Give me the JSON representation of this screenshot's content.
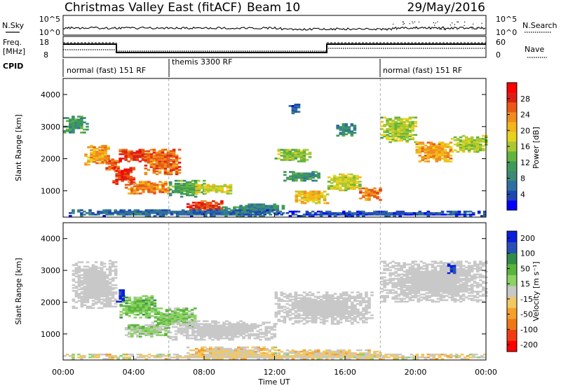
{
  "header": {
    "station": "Christmas Valley East (fitACF)",
    "beam": "Beam 10",
    "date": "29/May/2016"
  },
  "nsky_panel": {
    "left_label": "N.Sky",
    "right_label": "N.Search",
    "left_ticks": [
      "10^5",
      "10^0"
    ],
    "right_ticks": [
      "10^5",
      "10^0"
    ]
  },
  "freq_panel": {
    "left_label_line1": "Freq.",
    "left_label_line2": "[MHz]",
    "right_label": "Nave",
    "left_ticks": [
      "18",
      "8"
    ],
    "right_ticks": [
      "60",
      "0"
    ]
  },
  "cpid_panel": {
    "label": "CPID",
    "segments": [
      {
        "start_hour": 0,
        "end_hour": 6,
        "text": "normal (fast) 151 RF"
      },
      {
        "start_hour": 6,
        "end_hour": 18,
        "text": "themis 3300 RF"
      },
      {
        "start_hour": 18,
        "end_hour": 24,
        "text": "normal (fast) 151 RF"
      }
    ]
  },
  "x_axis": {
    "label": "Time UT",
    "ticks": [
      "00:00",
      "04:00",
      "08:00",
      "12:00",
      "16:00",
      "20:00",
      "00:00"
    ]
  },
  "colors": {
    "ground_scatter": "#c8c8c8"
  },
  "chart_data": [
    {
      "type": "heatmap",
      "name": "power",
      "x_range_hours": [
        0,
        24
      ],
      "ylim": [
        180,
        4500
      ],
      "ylabel": "Slant Range [km]",
      "yticks": [
        1000,
        2000,
        3000,
        4000
      ],
      "colorbar": {
        "label": "Power [dB]",
        "range": [
          0,
          32
        ],
        "ticks": [
          4,
          8,
          12,
          16,
          20,
          24,
          28
        ],
        "colors": [
          "#0000ff",
          "#1f46b4",
          "#2f6fa0",
          "#3b8a78",
          "#3f9a5a",
          "#63b43c",
          "#a9c832",
          "#e7d21e",
          "#f3b51a",
          "#f08c1e",
          "#e85a14",
          "#dd1e14",
          "#ff0000"
        ]
      },
      "regions": [
        {
          "t0": 0.0,
          "t1": 1.3,
          "r0": 2800,
          "r1": 3300,
          "v": 10
        },
        {
          "t0": 1.2,
          "t1": 2.6,
          "r0": 1800,
          "r1": 2400,
          "v": 22
        },
        {
          "t0": 2.4,
          "t1": 3.2,
          "r0": 1600,
          "r1": 2000,
          "v": 26
        },
        {
          "t0": 3.0,
          "t1": 5.2,
          "r0": 1900,
          "r1": 2300,
          "v": 27
        },
        {
          "t0": 2.8,
          "t1": 4.0,
          "r0": 1200,
          "r1": 1700,
          "v": 28
        },
        {
          "t0": 4.6,
          "t1": 6.6,
          "r0": 1500,
          "r1": 2300,
          "v": 25
        },
        {
          "t0": 3.5,
          "t1": 6.0,
          "r0": 900,
          "r1": 1300,
          "v": 24
        },
        {
          "t0": 6.0,
          "t1": 8.0,
          "r0": 800,
          "r1": 1300,
          "v": 12
        },
        {
          "t0": 7.0,
          "t1": 9.0,
          "r0": 300,
          "r1": 700,
          "v": 27
        },
        {
          "t0": 7.5,
          "t1": 9.5,
          "r0": 900,
          "r1": 1200,
          "v": 18
        },
        {
          "t0": 9.0,
          "t1": 10.5,
          "r0": 200,
          "r1": 500,
          "v": 10
        },
        {
          "t0": 10.0,
          "t1": 12.5,
          "r0": 200,
          "r1": 600,
          "v": 8
        },
        {
          "t0": 12.0,
          "t1": 14.0,
          "r0": 1900,
          "r1": 2300,
          "v": 15
        },
        {
          "t0": 12.5,
          "t1": 14.5,
          "r0": 1300,
          "r1": 1600,
          "v": 10
        },
        {
          "t0": 13.0,
          "t1": 15.0,
          "r0": 600,
          "r1": 1000,
          "v": 20
        },
        {
          "t0": 15.0,
          "t1": 16.8,
          "r0": 1000,
          "r1": 1500,
          "v": 17
        },
        {
          "t0": 16.8,
          "t1": 18.0,
          "r0": 700,
          "r1": 1100,
          "v": 24
        },
        {
          "t0": 15.5,
          "t1": 16.5,
          "r0": 2700,
          "r1": 3100,
          "v": 9
        },
        {
          "t0": 12.8,
          "t1": 13.4,
          "r0": 3400,
          "r1": 3700,
          "v": 5
        },
        {
          "t0": 18.0,
          "t1": 20.0,
          "r0": 2500,
          "r1": 3300,
          "v": 16
        },
        {
          "t0": 20.0,
          "t1": 22.0,
          "r0": 1900,
          "r1": 2500,
          "v": 22
        },
        {
          "t0": 22.0,
          "t1": 24.0,
          "r0": 2200,
          "r1": 2700,
          "v": 16
        },
        {
          "t0": 0.0,
          "t1": 12.0,
          "r0": 200,
          "r1": 400,
          "v": 6
        },
        {
          "t0": 12.0,
          "t1": 24.0,
          "r0": 200,
          "r1": 350,
          "v": 4
        }
      ]
    },
    {
      "type": "heatmap",
      "name": "velocity",
      "x_range_hours": [
        0,
        24
      ],
      "ylim": [
        180,
        4500
      ],
      "ylabel": "Slant Range [km]",
      "yticks": [
        1000,
        2000,
        3000,
        4000
      ],
      "colorbar": {
        "label": "Velocity [m s⁻¹]",
        "range": [
          -250,
          250
        ],
        "ticks": [
          200,
          100,
          50,
          15,
          -15,
          -50,
          -100,
          -200
        ],
        "colors": [
          "#ff0000",
          "#f03c14",
          "#f07814",
          "#f5a028",
          "#f0c864",
          "#c8c8c8",
          "#8cd264",
          "#5ab43c",
          "#328c46",
          "#2850b4",
          "#0a1edc"
        ]
      },
      "regions": [
        {
          "t0": 0.5,
          "t1": 3.0,
          "r0": 1800,
          "r1": 3300,
          "v": "gs"
        },
        {
          "t0": 3.2,
          "t1": 5.2,
          "r0": 1500,
          "r1": 2200,
          "v": 70
        },
        {
          "t0": 3.0,
          "t1": 3.4,
          "r0": 2000,
          "r1": 2400,
          "v": 220
        },
        {
          "t0": 5.0,
          "t1": 7.5,
          "r0": 1200,
          "r1": 1800,
          "v": 60
        },
        {
          "t0": 3.5,
          "t1": 6.0,
          "r0": 900,
          "r1": 1300,
          "v": 40
        },
        {
          "t0": 6.0,
          "t1": 12.0,
          "r0": 800,
          "r1": 1400,
          "v": "gs"
        },
        {
          "t0": 7.0,
          "t1": 12.0,
          "r0": 200,
          "r1": 600,
          "v": -30
        },
        {
          "t0": 12.0,
          "t1": 18.0,
          "r0": 200,
          "r1": 500,
          "v": -40
        },
        {
          "t0": 12.0,
          "t1": 17.5,
          "r0": 1300,
          "r1": 2300,
          "v": "gs"
        },
        {
          "t0": 18.0,
          "t1": 24.0,
          "r0": 2000,
          "r1": 3300,
          "v": "gs"
        },
        {
          "t0": 21.8,
          "t1": 22.2,
          "r0": 2900,
          "r1": 3200,
          "v": 220
        },
        {
          "t0": 0.0,
          "t1": 24.0,
          "r0": 200,
          "r1": 350,
          "v": -20
        }
      ]
    }
  ]
}
